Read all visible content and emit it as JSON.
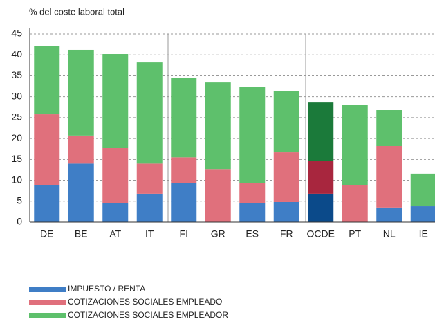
{
  "chart_data": {
    "type": "stacked_bar",
    "y_label": "% del coste laboral total",
    "categories": [
      "DE",
      "BE",
      "AT",
      "IT",
      "FI",
      "GR",
      "ES",
      "FR",
      "OCDE",
      "PT",
      "NL",
      "IE"
    ],
    "series": [
      {
        "name": "IMPUESTO / RENTA",
        "color": "#3f7ec6",
        "colors": [
          "#3f7ec6",
          "#3f7ec6",
          "#3f7ec6",
          "#3f7ec6",
          "#3f7ec6",
          "#3f7ec6",
          "#3f7ec6",
          "#3f7ec6",
          "#0b4a8a",
          "#3f7ec6",
          "#3f7ec6",
          "#3f7ec6"
        ],
        "values": [
          8.8,
          14.0,
          4.5,
          6.8,
          9.4,
          0,
          4.5,
          4.8,
          6.8,
          0,
          3.5,
          3.8
        ]
      },
      {
        "name": "COTIZACIONES SOCIALES EMPLEADO",
        "color": "#e0707c",
        "colors": [
          "#e0707c",
          "#e0707c",
          "#e0707c",
          "#e0707c",
          "#e0707c",
          "#e0707c",
          "#e0707c",
          "#e0707c",
          "#a8263e",
          "#e0707c",
          "#e0707c",
          "#e0707c"
        ],
        "values": [
          17.0,
          6.7,
          13.2,
          7.2,
          6.1,
          12.7,
          4.9,
          11.9,
          7.9,
          8.9,
          14.7,
          0
        ]
      },
      {
        "name": "COTIZACIONES SOCIALES EMPLEADOR",
        "color": "#5ec06c",
        "colors": [
          "#5ec06c",
          "#5ec06c",
          "#5ec06c",
          "#5ec06c",
          "#5ec06c",
          "#5ec06c",
          "#5ec06c",
          "#5ec06c",
          "#1b7a3a",
          "#5ec06c",
          "#5ec06c",
          "#5ec06c"
        ],
        "values": [
          16.3,
          20.5,
          22.5,
          24.2,
          19.0,
          20.7,
          23.0,
          14.7,
          13.9,
          19.2,
          8.6,
          7.8
        ]
      }
    ],
    "ylim": [
      0,
      45
    ],
    "yticks": [
      0,
      5,
      10,
      15,
      20,
      25,
      30,
      35,
      40,
      45
    ],
    "grid": true
  }
}
